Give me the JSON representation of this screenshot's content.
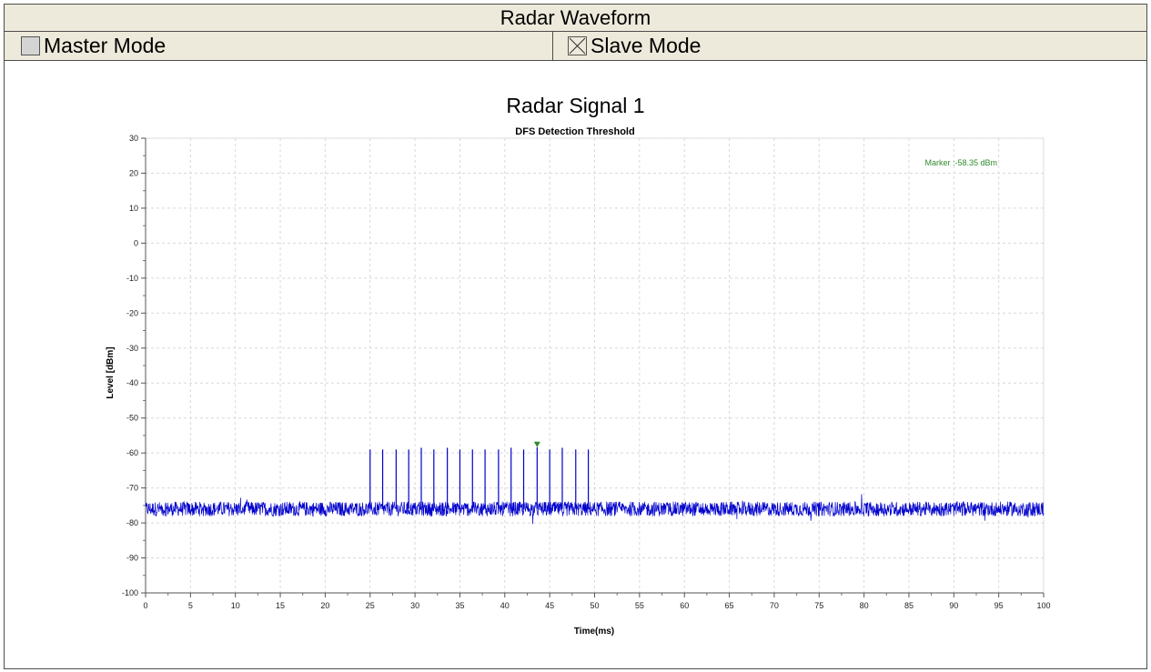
{
  "header": {
    "title": "Radar Waveform",
    "master_label": "Master Mode",
    "master_checked": false,
    "slave_label": "Slave Mode",
    "slave_checked": true
  },
  "chart_title": "Radar Signal 1",
  "chart_data": {
    "type": "line",
    "title": "DFS Detection Threshold",
    "xlabel": "Time(ms)",
    "ylabel": "Level [dBm]",
    "xlim": [
      0,
      100
    ],
    "ylim": [
      -100,
      30
    ],
    "xticks": [
      0,
      5,
      10,
      15,
      20,
      25,
      30,
      35,
      40,
      45,
      50,
      55,
      60,
      65,
      70,
      75,
      80,
      85,
      90,
      95,
      100
    ],
    "yticks": [
      30,
      20,
      10,
      0,
      -10,
      -20,
      -30,
      -40,
      -50,
      -60,
      -70,
      -80,
      -90,
      -100
    ],
    "grid": true,
    "noise_floor_dbm": -76,
    "series": [
      {
        "color": "#0000cc",
        "pulses": [
          {
            "x": 25.0,
            "y": -59
          },
          {
            "x": 26.4,
            "y": -59
          },
          {
            "x": 27.9,
            "y": -59
          },
          {
            "x": 29.3,
            "y": -59
          },
          {
            "x": 30.7,
            "y": -58.5
          },
          {
            "x": 32.1,
            "y": -59
          },
          {
            "x": 33.6,
            "y": -58.5
          },
          {
            "x": 35.0,
            "y": -59
          },
          {
            "x": 36.4,
            "y": -59
          },
          {
            "x": 37.8,
            "y": -59
          },
          {
            "x": 39.3,
            "y": -59
          },
          {
            "x": 40.7,
            "y": -58.5
          },
          {
            "x": 42.1,
            "y": -59
          },
          {
            "x": 43.6,
            "y": -58.35
          },
          {
            "x": 45.0,
            "y": -59
          },
          {
            "x": 46.4,
            "y": -58.5
          },
          {
            "x": 47.9,
            "y": -59
          },
          {
            "x": 49.3,
            "y": -59
          }
        ]
      }
    ],
    "marker": {
      "x": 43.6,
      "y": -58.35,
      "label": "Marker :-58.35 dBm",
      "color": "#2e8b2e"
    }
  }
}
